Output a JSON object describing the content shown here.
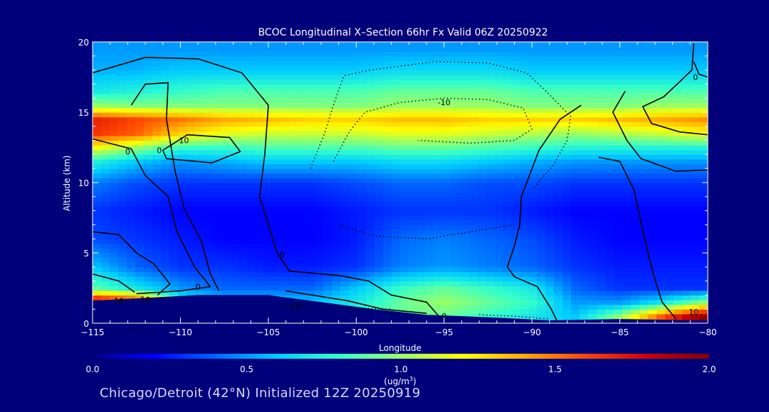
{
  "chart_data": {
    "type": "heatmap",
    "title": "BCOC Longitudinal X–Section 66hr  Fx Valid 06Z 20250922",
    "xlabel": "Longitude",
    "ylabel": "Altitude (km)",
    "xlim": [
      -115,
      -80
    ],
    "ylim": [
      0,
      20
    ],
    "x_ticks": [
      -115,
      -110,
      -105,
      -100,
      -95,
      -90,
      -85,
      -80
    ],
    "x_tick_labels": [
      "−115",
      "−110",
      "−105",
      "−100",
      "−95",
      "−90",
      "−85",
      "−80"
    ],
    "y_ticks": [
      0,
      5,
      10,
      15,
      20
    ],
    "y_tick_labels": [
      "0",
      "5",
      "10",
      "15",
      "20"
    ],
    "field": {
      "x": [
        -115,
        -112.5,
        -110,
        -107.5,
        -105,
        -102.5,
        -100,
        -97.5,
        -95,
        -92.5,
        -90,
        -87.5,
        -85,
        -82.5,
        -80
      ],
      "y": [
        0.5,
        1.5,
        2.5,
        4,
        6,
        8,
        10,
        11.5,
        12.5,
        13.5,
        14.5,
        15.5,
        16.5,
        18,
        19.5
      ],
      "values": [
        [
          2.0,
          1.5,
          0.9,
          0.8,
          0.8,
          0.8,
          0.8,
          0.9,
          0.9,
          0.8,
          0.7,
          0.6,
          1.0,
          1.6,
          2.0
        ],
        [
          2.0,
          1.8,
          0.8,
          0.6,
          0.6,
          0.6,
          0.7,
          0.9,
          1.0,
          0.9,
          0.8,
          0.5,
          0.5,
          0.7,
          1.0
        ],
        [
          0.9,
          0.7,
          0.5,
          0.4,
          0.4,
          0.4,
          0.6,
          0.8,
          0.9,
          0.8,
          0.7,
          0.4,
          0.3,
          0.3,
          0.3
        ],
        [
          0.6,
          0.4,
          0.3,
          0.3,
          0.25,
          0.25,
          0.3,
          0.45,
          0.5,
          0.45,
          0.4,
          0.3,
          0.25,
          0.25,
          0.25
        ],
        [
          0.35,
          0.3,
          0.25,
          0.2,
          0.2,
          0.2,
          0.25,
          0.4,
          0.45,
          0.4,
          0.35,
          0.25,
          0.2,
          0.2,
          0.2
        ],
        [
          0.3,
          0.25,
          0.2,
          0.2,
          0.2,
          0.2,
          0.25,
          0.3,
          0.3,
          0.3,
          0.25,
          0.2,
          0.2,
          0.2,
          0.2
        ],
        [
          0.45,
          0.35,
          0.3,
          0.3,
          0.3,
          0.3,
          0.35,
          0.4,
          0.4,
          0.35,
          0.35,
          0.3,
          0.3,
          0.3,
          0.3
        ],
        [
          0.75,
          0.6,
          0.5,
          0.55,
          0.6,
          0.6,
          0.6,
          0.65,
          0.65,
          0.6,
          0.55,
          0.5,
          0.5,
          0.5,
          0.5
        ],
        [
          1.2,
          1.0,
          0.8,
          0.8,
          0.85,
          0.85,
          0.85,
          0.9,
          0.9,
          0.85,
          0.8,
          0.75,
          0.75,
          0.75,
          0.75
        ],
        [
          1.65,
          1.55,
          1.3,
          1.15,
          1.1,
          1.1,
          1.1,
          1.15,
          1.15,
          1.1,
          1.05,
          1.0,
          1.05,
          1.1,
          1.2
        ],
        [
          1.7,
          1.6,
          1.5,
          1.4,
          1.35,
          1.3,
          1.3,
          1.35,
          1.35,
          1.3,
          1.3,
          1.3,
          1.35,
          1.4,
          1.45
        ],
        [
          1.0,
          0.95,
          0.95,
          0.95,
          0.95,
          0.95,
          0.95,
          1.0,
          1.0,
          1.0,
          0.95,
          0.95,
          0.95,
          1.0,
          1.0
        ],
        [
          0.7,
          0.75,
          0.8,
          0.85,
          0.85,
          0.85,
          0.85,
          0.9,
          0.9,
          0.9,
          0.85,
          0.85,
          0.85,
          0.85,
          0.85
        ],
        [
          0.55,
          0.55,
          0.6,
          0.6,
          0.6,
          0.6,
          0.6,
          0.65,
          0.65,
          0.65,
          0.6,
          0.6,
          0.6,
          0.6,
          0.6
        ],
        [
          0.5,
          0.5,
          0.5,
          0.5,
          0.5,
          0.5,
          0.5,
          0.5,
          0.5,
          0.5,
          0.5,
          0.5,
          0.5,
          0.5,
          0.5
        ]
      ]
    },
    "terrain_km": [
      [
        -115,
        1.6
      ],
      [
        -112,
        1.8
      ],
      [
        -109,
        2.0
      ],
      [
        -105,
        2.0
      ],
      [
        -102,
        1.5
      ],
      [
        -99,
        1.0
      ],
      [
        -96,
        0.6
      ],
      [
        -92,
        0.4
      ],
      [
        -89,
        0.2
      ],
      [
        -85,
        0.3
      ],
      [
        -80,
        0.2
      ]
    ],
    "contours": [
      {
        "style": "solid",
        "points": [
          [
            -115,
            17.8
          ],
          [
            -112,
            18.9
          ],
          [
            -109,
            18.8
          ],
          [
            -106.5,
            17.8
          ],
          [
            -105,
            15.5
          ],
          [
            -105.2,
            12
          ],
          [
            -105.5,
            9
          ],
          [
            -104.5,
            5
          ],
          [
            -103.8,
            3.7
          ],
          [
            -101,
            3.4
          ],
          [
            -99.3,
            3.0
          ],
          [
            -98,
            2.0
          ],
          [
            -96,
            1.5
          ],
          [
            -95.3,
            0.5
          ]
        ]
      },
      {
        "style": "solid",
        "points": [
          [
            -115,
            13.1
          ],
          [
            -112.8,
            12.4
          ],
          [
            -112,
            10.5
          ],
          [
            -110.7,
            9.0
          ],
          [
            -110.2,
            6.5
          ],
          [
            -109.2,
            4.0
          ],
          [
            -108.3,
            2.6
          ],
          [
            -110,
            2.3
          ],
          [
            -112.5,
            2.1
          ]
        ]
      },
      {
        "style": "solid",
        "points": [
          [
            -112.8,
            15.5
          ],
          [
            -112,
            17.0
          ],
          [
            -110.7,
            17.1
          ],
          [
            -110.8,
            14.5
          ],
          [
            -110.3,
            10.8
          ],
          [
            -109.8,
            8.2
          ],
          [
            -108.8,
            5.8
          ],
          [
            -108.3,
            3.5
          ],
          [
            -107.8,
            2.3
          ]
        ]
      },
      {
        "style": "solid",
        "points": [
          [
            -111,
            12.3
          ],
          [
            -109.6,
            13.4
          ],
          [
            -107.2,
            13.2
          ],
          [
            -106.6,
            12.2
          ],
          [
            -108.2,
            11.4
          ],
          [
            -110.8,
            11.7
          ],
          [
            -111,
            12.3
          ]
        ]
      },
      {
        "style": "solid",
        "points": [
          [
            -115,
            6.5
          ],
          [
            -113.5,
            6.3
          ],
          [
            -112.5,
            5.0
          ],
          [
            -111.5,
            4.2
          ],
          [
            -110.6,
            2.8
          ],
          [
            -111.3,
            2.0
          ]
        ]
      },
      {
        "style": "solid",
        "points": [
          [
            -115,
            3.5
          ],
          [
            -113.5,
            3.0
          ],
          [
            -112.6,
            2.2
          ]
        ]
      },
      {
        "style": "solid",
        "points": [
          [
            -104,
            2.3
          ],
          [
            -100.5,
            1.6
          ],
          [
            -98.5,
            1.0
          ],
          [
            -96,
            0.7
          ]
        ]
      },
      {
        "style": "solid",
        "points": [
          [
            -80.8,
            19.9
          ],
          [
            -80.9,
            18
          ],
          [
            -82.5,
            16.1
          ],
          [
            -83.7,
            15.4
          ],
          [
            -83.2,
            14.2
          ],
          [
            -81.6,
            13.6
          ],
          [
            -80,
            13.4
          ]
        ]
      },
      {
        "style": "solid",
        "points": [
          [
            -80,
            17.5
          ],
          [
            -80.5,
            17.7
          ],
          [
            -80.8,
            18.6
          ]
        ]
      },
      {
        "style": "solid",
        "points": [
          [
            -84.7,
            16.5
          ],
          [
            -85.4,
            15.0
          ],
          [
            -84.6,
            13.0
          ],
          [
            -83.8,
            11.7
          ],
          [
            -81.8,
            10.8
          ],
          [
            -80,
            10.9
          ]
        ]
      },
      {
        "style": "solid",
        "points": [
          [
            -86.2,
            11.8
          ],
          [
            -85.0,
            11.5
          ],
          [
            -84.2,
            9.5
          ],
          [
            -83.5,
            5.5
          ],
          [
            -83.1,
            3.5
          ],
          [
            -82.6,
            1.5
          ],
          [
            -81.8,
            0.3
          ]
        ]
      },
      {
        "style": "solid",
        "points": [
          [
            -87.2,
            15.5
          ],
          [
            -88.4,
            14.5
          ],
          [
            -89.6,
            12.3
          ],
          [
            -90.6,
            9.0
          ],
          [
            -90.7,
            7.0
          ],
          [
            -91.0,
            5.5
          ],
          [
            -91.4,
            4.0
          ],
          [
            -91.0,
            3.3
          ],
          [
            -89.7,
            2.6
          ],
          [
            -88.9,
            1.0
          ],
          [
            -88.6,
            0.2
          ]
        ]
      },
      {
        "style": "dotted",
        "points": [
          [
            -102.6,
            11.0
          ],
          [
            -101.8,
            13.5
          ],
          [
            -101.3,
            15.5
          ],
          [
            -100.7,
            17.6
          ],
          [
            -99.2,
            18.0
          ],
          [
            -95.5,
            18.6
          ],
          [
            -92.5,
            18.5
          ],
          [
            -90.3,
            17.8
          ],
          [
            -89.2,
            16.5
          ],
          [
            -87.8,
            14.7
          ],
          [
            -88.0,
            13.0
          ],
          [
            -88.8,
            11.2
          ],
          [
            -90.0,
            9.5
          ]
        ]
      },
      {
        "style": "dotted",
        "points": [
          [
            -101.3,
            11.5
          ],
          [
            -100.4,
            13.6
          ],
          [
            -99.5,
            15.0
          ],
          [
            -97.5,
            15.7
          ],
          [
            -95,
            16.0
          ],
          [
            -92.5,
            15.9
          ],
          [
            -90.5,
            15.3
          ],
          [
            -90.0,
            13.8
          ],
          [
            -91.0,
            13.0
          ],
          [
            -93.5,
            12.8
          ],
          [
            -96.5,
            13.0
          ]
        ]
      },
      {
        "style": "dotted",
        "points": [
          [
            -101.0,
            7.0
          ],
          [
            -99.0,
            6.2
          ],
          [
            -96.0,
            6.0
          ],
          [
            -93.5,
            6.5
          ],
          [
            -91.0,
            7.0
          ]
        ]
      },
      {
        "style": "dotted",
        "points": [
          [
            -104.2,
            1.3
          ],
          [
            -101.0,
            1.1
          ],
          [
            -98.0,
            1.0
          ]
        ]
      },
      {
        "style": "dotted",
        "points": [
          [
            -93.0,
            0.6
          ],
          [
            -91.0,
            0.5
          ],
          [
            -89.0,
            0.3
          ]
        ]
      }
    ],
    "contour_labels": [
      {
        "text": "0",
        "lon": -111.2,
        "lat": 12.3
      },
      {
        "text": "0",
        "lon": -109.0,
        "lat": 2.6
      },
      {
        "text": "0",
        "lon": -104.2,
        "lat": 4.9
      },
      {
        "text": "0",
        "lon": -113.0,
        "lat": 12.2
      },
      {
        "text": "0",
        "lon": -95.0,
        "lat": 0.5
      },
      {
        "text": "0",
        "lon": -80.7,
        "lat": 17.5
      },
      {
        "text": "10",
        "lon": -109.8,
        "lat": 13.0
      },
      {
        "text": "10",
        "lon": -112.0,
        "lat": 1.7
      },
      {
        "text": "10",
        "lon": -113.5,
        "lat": 1.6
      },
      {
        "text": "-10",
        "lon": -95.0,
        "lat": 15.7
      },
      {
        "text": "-10",
        "lon": -103.5,
        "lat": 1.2
      },
      {
        "text": "10",
        "lon": -80.8,
        "lat": 0.8
      }
    ],
    "colorbar": {
      "range": [
        0.0,
        2.0
      ],
      "ticks": [
        0.0,
        0.5,
        1.0,
        1.5,
        2.0
      ],
      "tick_labels": [
        "0.0",
        "0.5",
        "1.0",
        "1.5",
        "2.0"
      ],
      "unit_label": "(ug/m",
      "unit_superscript": "3",
      "unit_close": ")",
      "colors": [
        "#00007f",
        "#0000ff",
        "#0066ff",
        "#00ccff",
        "#33ffcc",
        "#99ff66",
        "#ffff00",
        "#ffaa00",
        "#ff4400",
        "#cc0000",
        "#800000"
      ]
    },
    "footer": "Chicago/Detroit (42°N) Initialized 12Z 20250919",
    "colors": {
      "background": "#00007a",
      "text": "#ffffff",
      "contour": "#000000",
      "axis": "#ffffff"
    }
  }
}
